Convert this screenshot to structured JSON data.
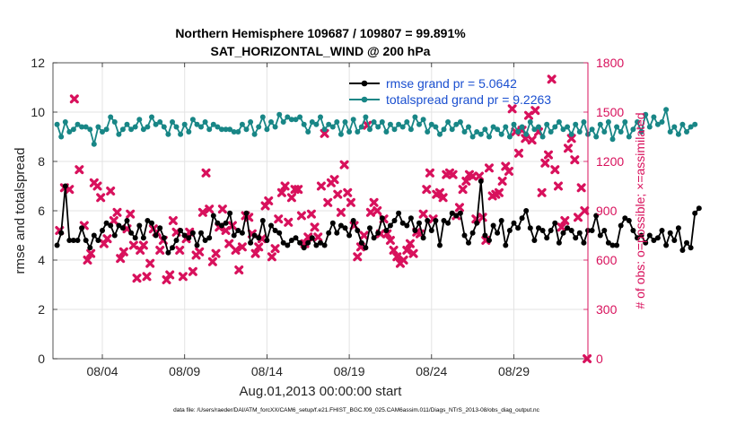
{
  "chart_data": {
    "type": "line",
    "title_line1": "Northern Hemisphere 109687 / 109807 = 99.891%",
    "title_line2": "SAT_HORIZONTAL_WIND @ 200 hPa",
    "xlabel": "Aug.01,2013 00:00:00 start",
    "ylabel_left": "rmse and totalspread",
    "ylabel_right": "# of obs: o=possible; ×=assimilated",
    "footer": "data file: /Users/raeder/DAI/ATM_forcXX/CAM6_setup/f.e21.FHIST_BGC.f09_025.CAM6assim.011/Diags_NTrS_2013-08/obs_diag_output.nc",
    "xlim": [
      1,
      33.5
    ],
    "ylim_left": [
      0,
      12
    ],
    "ylim_right": [
      0,
      1800
    ],
    "x_ticks": [
      {
        "x": 4,
        "label": "08/04"
      },
      {
        "x": 9,
        "label": "08/09"
      },
      {
        "x": 14,
        "label": "08/14"
      },
      {
        "x": 19,
        "label": "08/19"
      },
      {
        "x": 24,
        "label": "08/24"
      },
      {
        "x": 29,
        "label": "08/29"
      }
    ],
    "y_ticks_left": [
      {
        "v": 0,
        "label": "0"
      },
      {
        "v": 2,
        "label": "2"
      },
      {
        "v": 4,
        "label": "4"
      },
      {
        "v": 6,
        "label": "6"
      },
      {
        "v": 8,
        "label": "8"
      },
      {
        "v": 10,
        "label": "10"
      },
      {
        "v": 12,
        "label": "12"
      }
    ],
    "y_ticks_right": [
      {
        "v": 0,
        "label": "0"
      },
      {
        "v": 300,
        "label": "300"
      },
      {
        "v": 600,
        "label": "600"
      },
      {
        "v": 900,
        "label": "900"
      },
      {
        "v": 1200,
        "label": "1200"
      },
      {
        "v": 1500,
        "label": "1500"
      },
      {
        "v": 1800,
        "label": "1800"
      }
    ],
    "x_start": 1.25,
    "x_step": 0.25,
    "grid": true,
    "legend_position": "top-right",
    "series": [
      {
        "name": "rmse grand pr = 5.0642",
        "axis": "left",
        "color": "#000000",
        "marker": "circle",
        "values": [
          4.6,
          5.1,
          7.0,
          4.8,
          4.8,
          4.8,
          5.3,
          4.8,
          4.5,
          5.0,
          4.8,
          5.2,
          5.5,
          5.4,
          5.0,
          5.4,
          5.3,
          5.6,
          5.1,
          4.9,
          5.4,
          4.9,
          5.6,
          5.5,
          5.0,
          5.3,
          4.9,
          4.3,
          4.5,
          4.8,
          5.2,
          5.0,
          4.9,
          5.1,
          4.6,
          5.1,
          4.8,
          4.9,
          5.8,
          5.5,
          5.4,
          5.5,
          5.9,
          5.0,
          5.2,
          5.1,
          5.9,
          4.7,
          5.0,
          4.9,
          5.6,
          4.8,
          5.4,
          5.2,
          5.1,
          4.7,
          4.6,
          4.8,
          4.9,
          4.7,
          4.5,
          4.7,
          4.9,
          4.6,
          4.7,
          4.6,
          5.1,
          5.5,
          5.1,
          5.4,
          5.3,
          5.0,
          5.6,
          5.2,
          4.7,
          4.5,
          5.3,
          4.9,
          5.1,
          5.7,
          5.2,
          5.4,
          5.6,
          5.9,
          5.5,
          5.4,
          5.7,
          5.2,
          5.5,
          4.9,
          5.6,
          5.2,
          5.6,
          4.6,
          5.6,
          5.5,
          5.9,
          5.8,
          5.9,
          5.0,
          4.7,
          5.1,
          5.5,
          7.2,
          5.0,
          4.8,
          5.4,
          5.1,
          5.6,
          4.6,
          5.2,
          5.5,
          5.3,
          5.7,
          6.0,
          5.3,
          4.8,
          5.3,
          5.2,
          4.9,
          5.2,
          5.5,
          4.7,
          5.1,
          5.3,
          5.2,
          4.9,
          5.1,
          4.7,
          5.2,
          5.2,
          5.8,
          5.0,
          5.2,
          4.7,
          4.6,
          4.6,
          5.4,
          5.7,
          5.6,
          5.2,
          4.9,
          5.0,
          4.7,
          5.0,
          4.8,
          4.9,
          5.2,
          4.6,
          5.1,
          4.8,
          5.3,
          4.4,
          4.7,
          4.5,
          5.9,
          6.1
        ]
      },
      {
        "name": "totalspread grand pr = 9.2263",
        "axis": "left",
        "color": "#188686",
        "marker": "circle",
        "values": [
          9.5,
          9.0,
          9.6,
          9.2,
          9.3,
          9.5,
          9.4,
          9.4,
          9.3,
          8.7,
          9.4,
          9.2,
          9.3,
          9.8,
          9.6,
          9.1,
          9.3,
          9.5,
          9.3,
          9.4,
          9.7,
          9.3,
          9.4,
          9.8,
          9.5,
          9.6,
          9.4,
          9.1,
          9.6,
          9.4,
          9.1,
          9.5,
          9.2,
          9.7,
          9.5,
          9.4,
          9.6,
          9.3,
          9.5,
          9.4,
          9.3,
          9.3,
          9.3,
          9.2,
          9.2,
          9.5,
          9.3,
          9.6,
          9.1,
          9.4,
          9.8,
          9.3,
          9.6,
          9.4,
          9.9,
          9.6,
          9.8,
          9.7,
          9.7,
          9.8,
          9.5,
          9.2,
          9.6,
          9.5,
          9.8,
          9.3,
          9.5,
          9.4,
          9.6,
          9.1,
          9.6,
          9.2,
          9.7,
          9.2,
          9.4,
          9.8,
          9.3,
          9.6,
          9.4,
          9.6,
          9.2,
          9.5,
          9.3,
          9.5,
          9.4,
          9.6,
          9.3,
          9.8,
          9.5,
          9.7,
          9.2,
          9.5,
          9.4,
          9.1,
          9.3,
          9.6,
          9.3,
          9.5,
          9.6,
          9.2,
          9.4,
          9.0,
          9.2,
          9.1,
          9.3,
          9.0,
          9.4,
          9.3,
          9.1,
          9.4,
          9.0,
          9.5,
          9.2,
          9.4,
          9.1,
          9.6,
          9.3,
          9.4,
          9.0,
          9.5,
          9.2,
          9.4,
          9.6,
          9.3,
          9.4,
          9.1,
          9.5,
          9.2,
          9.6,
          9.1,
          9.3,
          9.0,
          9.5,
          9.2,
          9.6,
          8.9,
          9.4,
          9.2,
          9.6,
          9.0,
          9.3,
          9.6,
          9.2,
          9.9,
          9.4,
          9.8,
          9.5,
          9.6,
          10.1,
          9.2,
          9.4,
          9.1,
          9.5,
          9.2,
          9.4,
          9.5
        ]
      }
    ],
    "obs_assimilated": {
      "axis": "right",
      "color": "#d8115c",
      "marker": "x",
      "points": [
        [
          1.4,
          780
        ],
        [
          1.7,
          1040
        ],
        [
          2.0,
          1030
        ],
        [
          2.3,
          1580
        ],
        [
          2.6,
          1150
        ],
        [
          2.9,
          810
        ],
        [
          3.1,
          600
        ],
        [
          3.3,
          640
        ],
        [
          3.5,
          1070
        ],
        [
          3.7,
          1050
        ],
        [
          3.9,
          980
        ],
        [
          4.1,
          700
        ],
        [
          4.3,
          730
        ],
        [
          4.5,
          1020
        ],
        [
          4.7,
          840
        ],
        [
          4.9,
          890
        ],
        [
          5.1,
          610
        ],
        [
          5.3,
          650
        ],
        [
          5.5,
          790
        ],
        [
          5.7,
          880
        ],
        [
          5.9,
          690
        ],
        [
          6.1,
          490
        ],
        [
          6.3,
          660
        ],
        [
          6.5,
          690
        ],
        [
          6.7,
          500
        ],
        [
          6.9,
          580
        ],
        [
          7.1,
          790
        ],
        [
          7.3,
          770
        ],
        [
          7.5,
          660
        ],
        [
          7.7,
          720
        ],
        [
          7.9,
          480
        ],
        [
          8.1,
          510
        ],
        [
          8.3,
          840
        ],
        [
          8.5,
          770
        ],
        [
          8.7,
          660
        ],
        [
          8.9,
          500
        ],
        [
          9.1,
          730
        ],
        [
          9.3,
          770
        ],
        [
          9.5,
          530
        ],
        [
          9.7,
          630
        ],
        [
          9.9,
          650
        ],
        [
          10.1,
          890
        ],
        [
          10.3,
          1130
        ],
        [
          10.5,
          910
        ],
        [
          10.7,
          590
        ],
        [
          10.9,
          640
        ],
        [
          11.1,
          800
        ],
        [
          11.3,
          910
        ],
        [
          11.5,
          780
        ],
        [
          11.7,
          700
        ],
        [
          11.9,
          810
        ],
        [
          12.1,
          660
        ],
        [
          12.3,
          540
        ],
        [
          12.5,
          680
        ],
        [
          12.7,
          870
        ],
        [
          12.9,
          860
        ],
        [
          13.1,
          760
        ],
        [
          13.3,
          640
        ],
        [
          13.5,
          680
        ],
        [
          13.7,
          730
        ],
        [
          13.9,
          930
        ],
        [
          14.1,
          960
        ],
        [
          14.3,
          620
        ],
        [
          14.5,
          670
        ],
        [
          14.7,
          850
        ],
        [
          14.9,
          1010
        ],
        [
          15.1,
          1050
        ],
        [
          15.3,
          830
        ],
        [
          15.5,
          980
        ],
        [
          15.7,
          1030
        ],
        [
          15.9,
          1030
        ],
        [
          16.1,
          870
        ],
        [
          16.3,
          700
        ],
        [
          16.5,
          740
        ],
        [
          16.7,
          880
        ],
        [
          16.9,
          800
        ],
        [
          17.1,
          740
        ],
        [
          17.3,
          1050
        ],
        [
          17.5,
          1370
        ],
        [
          17.7,
          950
        ],
        [
          17.9,
          1070
        ],
        [
          18.1,
          1090
        ],
        [
          18.3,
          1000
        ],
        [
          18.5,
          890
        ],
        [
          18.7,
          1180
        ],
        [
          18.9,
          1010
        ],
        [
          19.1,
          950
        ],
        [
          19.3,
          810
        ],
        [
          19.5,
          620
        ],
        [
          19.7,
          680
        ],
        [
          19.9,
          750
        ],
        [
          20.1,
          1420
        ],
        [
          20.3,
          890
        ],
        [
          20.5,
          950
        ],
        [
          20.7,
          900
        ],
        [
          20.9,
          760
        ],
        [
          21.1,
          850
        ],
        [
          21.3,
          760
        ],
        [
          21.5,
          720
        ],
        [
          21.7,
          660
        ],
        [
          21.9,
          620
        ],
        [
          22.1,
          580
        ],
        [
          22.3,
          600
        ],
        [
          22.5,
          660
        ],
        [
          22.7,
          700
        ],
        [
          22.9,
          640
        ],
        [
          23.1,
          770
        ],
        [
          23.3,
          760
        ],
        [
          23.5,
          880
        ],
        [
          23.7,
          1030
        ],
        [
          23.9,
          1130
        ],
        [
          24.1,
          850
        ],
        [
          24.3,
          1000
        ],
        [
          24.5,
          1010
        ],
        [
          24.7,
          980
        ],
        [
          24.9,
          1120
        ],
        [
          25.1,
          1130
        ],
        [
          25.3,
          1120
        ],
        [
          25.5,
          870
        ],
        [
          25.7,
          920
        ],
        [
          25.9,
          1030
        ],
        [
          26.1,
          1080
        ],
        [
          26.3,
          1120
        ],
        [
          26.5,
          1110
        ],
        [
          26.7,
          850
        ],
        [
          26.9,
          1110
        ],
        [
          27.1,
          860
        ],
        [
          27.3,
          720
        ],
        [
          27.5,
          1160
        ],
        [
          27.7,
          990
        ],
        [
          27.9,
          1000
        ],
        [
          28.1,
          1010
        ],
        [
          28.3,
          1080
        ],
        [
          28.5,
          1170
        ],
        [
          28.7,
          1140
        ],
        [
          28.9,
          1520
        ],
        [
          29.1,
          1380
        ],
        [
          29.3,
          1250
        ],
        [
          29.5,
          1390
        ],
        [
          29.7,
          1340
        ],
        [
          29.9,
          1480
        ],
        [
          30.1,
          1330
        ],
        [
          30.3,
          1510
        ],
        [
          30.5,
          1380
        ],
        [
          30.7,
          1010
        ],
        [
          30.9,
          1190
        ],
        [
          31.1,
          1240
        ],
        [
          31.3,
          1700
        ],
        [
          31.5,
          1150
        ],
        [
          31.7,
          1050
        ],
        [
          31.9,
          800
        ],
        [
          32.1,
          840
        ],
        [
          32.3,
          1280
        ],
        [
          32.5,
          1340
        ],
        [
          32.7,
          1210
        ],
        [
          32.9,
          860
        ],
        [
          33.1,
          1040
        ],
        [
          33.3,
          900
        ],
        [
          33.45,
          0
        ]
      ]
    }
  }
}
